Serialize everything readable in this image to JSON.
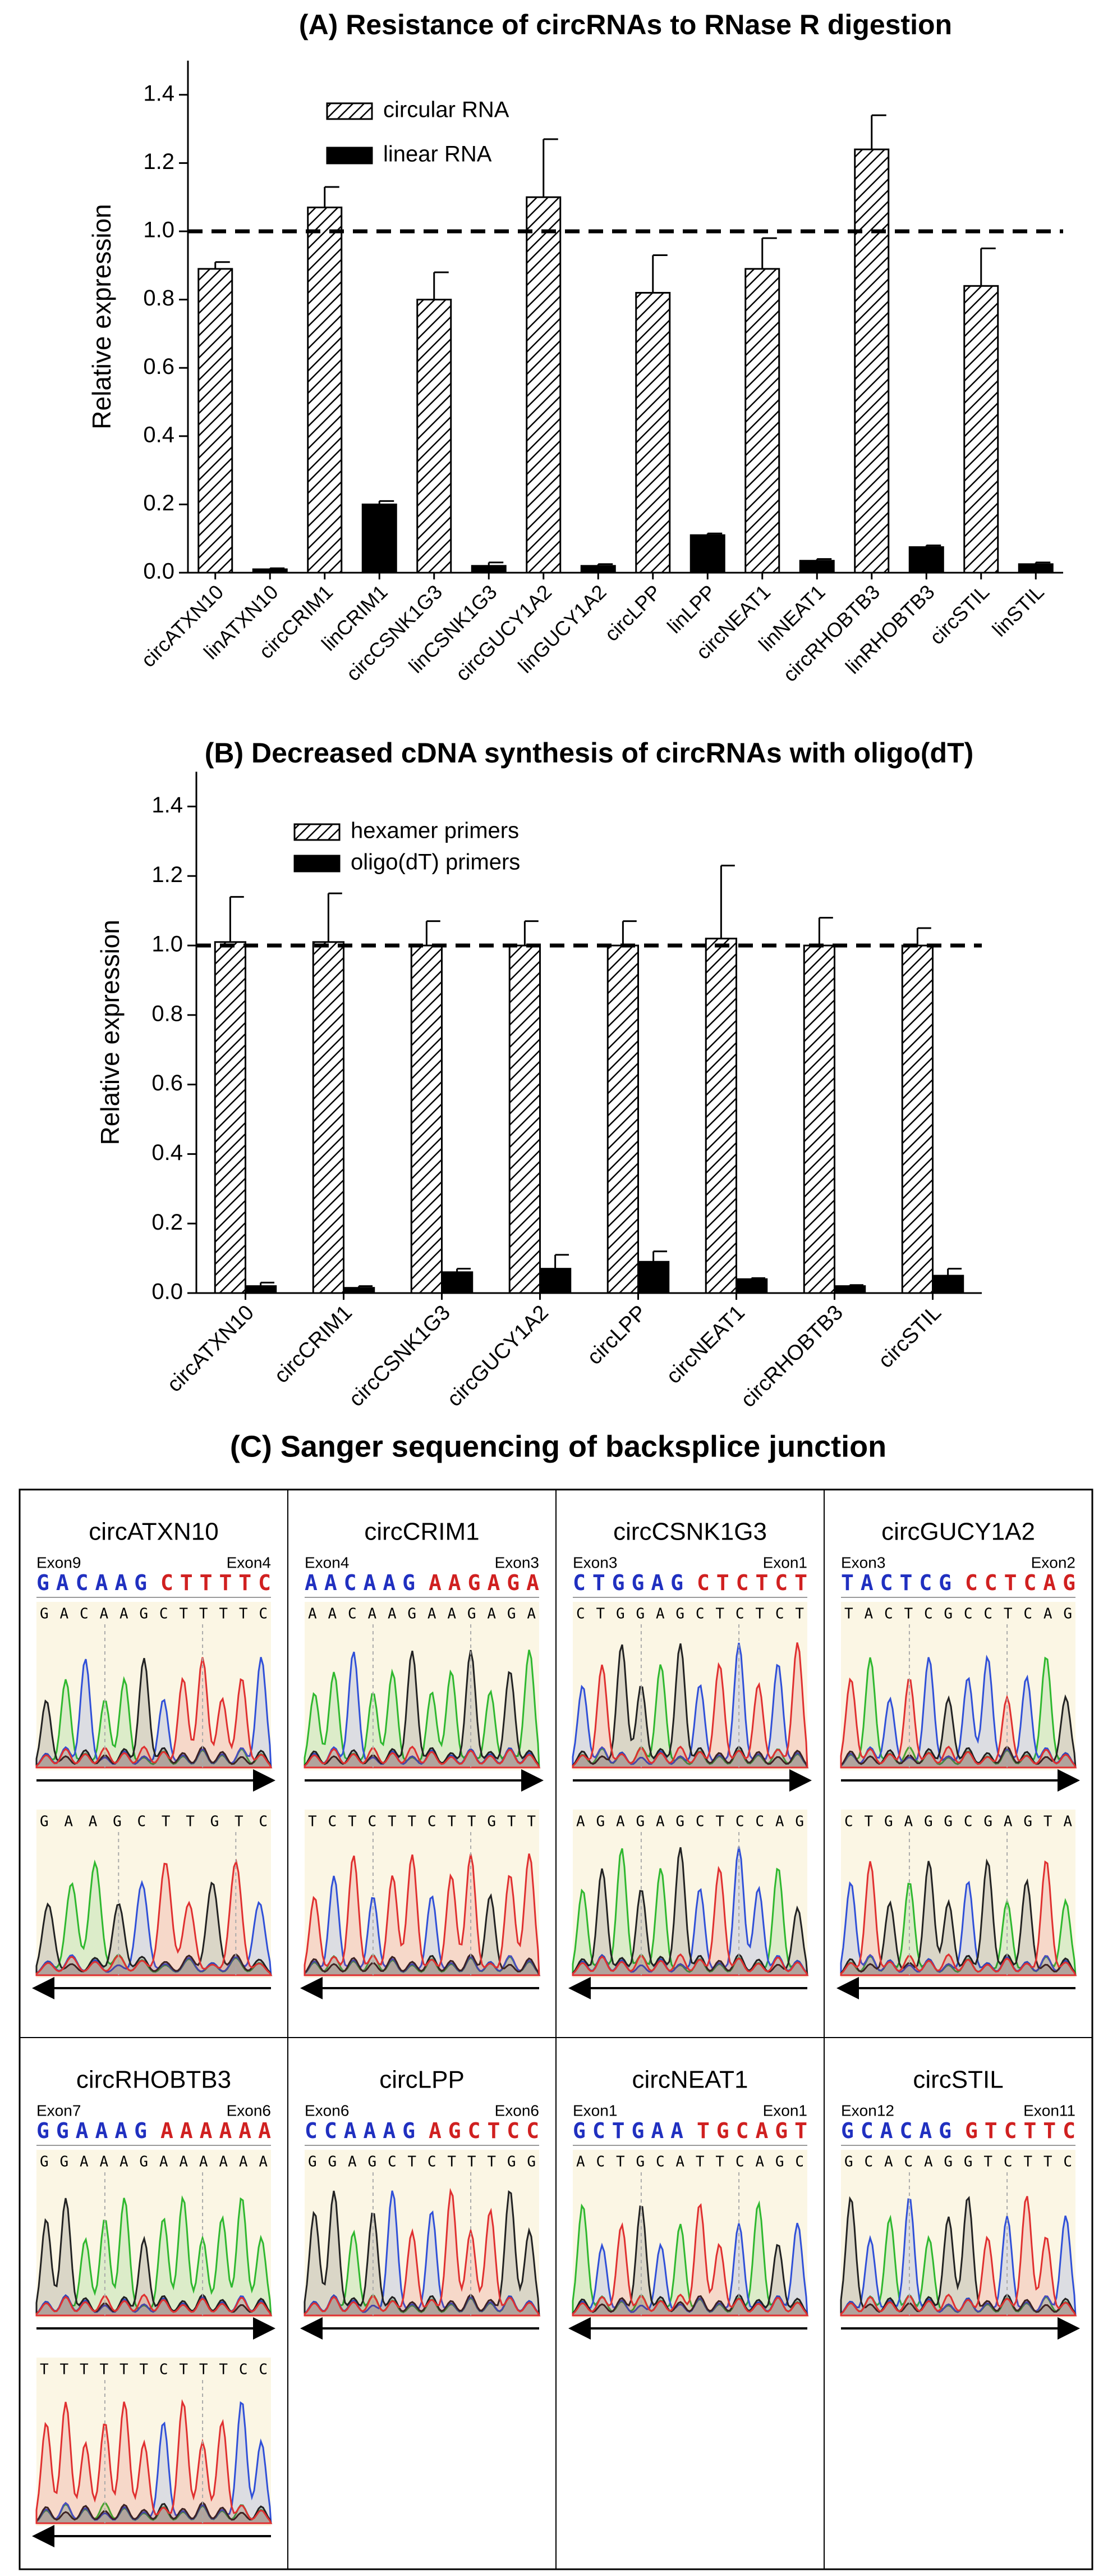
{
  "chart_data": [
    {
      "type": "bar",
      "title": "(A) Resistance of circRNAs to RNase R digestion",
      "ylabel": "Relative expression",
      "categories": [
        "circATXN10",
        "linATXN10",
        "circCRIM1",
        "linCRIM1",
        "circCSNK1G3",
        "linCSNK1G3",
        "circGUCY1A2",
        "linGUCY1A2",
        "circLPP",
        "linLPP",
        "circNEAT1",
        "linNEAT1",
        "circRHOBTB3",
        "linRHOBTB3",
        "circSTIL",
        "linSTIL"
      ],
      "series": [
        {
          "name": "circular RNA",
          "pattern": "hatch",
          "color": "#000000",
          "values": [
            0.89,
            null,
            1.07,
            null,
            0.8,
            null,
            1.1,
            null,
            0.82,
            null,
            0.89,
            null,
            1.24,
            null,
            0.84,
            null
          ],
          "errors": [
            0.02,
            null,
            0.06,
            null,
            0.08,
            null,
            0.17,
            null,
            0.11,
            null,
            0.09,
            null,
            0.1,
            null,
            0.11,
            null
          ]
        },
        {
          "name": "linear RNA",
          "pattern": "solid",
          "color": "#000000",
          "values": [
            null,
            0.01,
            null,
            0.2,
            null,
            0.02,
            null,
            0.02,
            null,
            0.11,
            null,
            0.035,
            null,
            0.075,
            null,
            0.025
          ],
          "errors": [
            null,
            0.003,
            null,
            0.01,
            null,
            0.01,
            null,
            0.005,
            null,
            0.005,
            null,
            0.005,
            null,
            0.005,
            null,
            0.005
          ]
        }
      ],
      "ylim": [
        0,
        1.5
      ],
      "yticks": [
        {
          "value": 0,
          "label": "0.0"
        },
        0.2,
        0.4,
        0.6,
        0.8,
        {
          "value": 1,
          "label": "1.0"
        },
        1.2,
        1.4
      ],
      "reference_line": 1,
      "legend": "upper left"
    },
    {
      "type": "bar",
      "title": "(B) Decreased cDNA synthesis of circRNAs with oligo(dT)",
      "ylabel": "Relative expression",
      "categories": [
        "circATXN10",
        "circCRIM1",
        "circCSNK1G3",
        "circGUCY1A2",
        "circLPP",
        "circNEAT1",
        "circRHOBTB3",
        "circSTIL"
      ],
      "series": [
        {
          "name": "hexamer primers",
          "pattern": "hatch",
          "color": "#000000",
          "values": [
            1.01,
            1.01,
            1.0,
            1.0,
            1.0,
            1.02,
            1.0,
            1.0
          ],
          "errors": [
            0.13,
            0.14,
            0.07,
            0.07,
            0.07,
            0.21,
            0.08,
            0.05
          ]
        },
        {
          "name": "oligo(dT) primers",
          "pattern": "solid",
          "color": "#000000",
          "values": [
            0.02,
            0.015,
            0.06,
            0.07,
            0.09,
            0.04,
            0.02,
            0.05
          ],
          "errors": [
            0.01,
            0.005,
            0.01,
            0.04,
            0.03,
            0.003,
            0.003,
            0.02
          ]
        }
      ],
      "ylim": [
        0,
        1.5
      ],
      "yticks": [
        {
          "value": 0,
          "label": "0.0"
        },
        0.2,
        0.4,
        0.6,
        0.8,
        {
          "value": 1,
          "label": "1.0"
        },
        1.2,
        1.4
      ],
      "reference_line": 1,
      "legend": "upper left"
    }
  ],
  "sanger": {
    "title": "(C) Sanger sequencing of backsplice junction",
    "cells": [
      {
        "name": "circATXN10",
        "exon_left": "Exon9",
        "exon_right": "Exon4",
        "left": "GACAAG",
        "right": "CTTTTC",
        "traces": [
          {
            "calls": "GACAAGCTTTTC",
            "direction": "right"
          },
          {
            "calls": "GAAGCTTGTC",
            "direction": "left"
          }
        ]
      },
      {
        "name": "circCRIM1",
        "exon_left": "Exon4",
        "exon_right": "Exon3",
        "left": "AACAAG",
        "right": "AAGAGA",
        "traces": [
          {
            "calls": "AACAAGAAGAGA",
            "direction": "right"
          },
          {
            "calls": "TCTCTTCTTGTT",
            "direction": "left"
          }
        ]
      },
      {
        "name": "circCSNK1G3",
        "exon_left": "Exon3",
        "exon_right": "Exon1",
        "left": "CTGGAG",
        "right": "CTCTCT",
        "traces": [
          {
            "calls": "CTGGAGCTCTCT",
            "direction": "right"
          },
          {
            "calls": "AGAGAGCTCCAG",
            "direction": "left"
          }
        ]
      },
      {
        "name": "circGUCY1A2",
        "exon_left": "Exon3",
        "exon_right": "Exon2",
        "left": "TACTCG",
        "right": "CCTCAG",
        "traces": [
          {
            "calls": "TACTCGCCTCAG",
            "direction": "right"
          },
          {
            "calls": "CTGAGGCGAGTA",
            "direction": "left"
          }
        ]
      },
      {
        "name": "circRHOBTB3",
        "exon_left": "Exon7",
        "exon_right": "Exon6",
        "left": "GGAAAG",
        "right": "AAAAAA",
        "traces": [
          {
            "calls": "GGAAAGAAAAAA",
            "direction": "right"
          },
          {
            "calls": "TTTTTTCTTTCC",
            "direction": "left"
          }
        ]
      },
      {
        "name": "circLPP",
        "exon_left": "Exon6",
        "exon_right": "Exon6",
        "left": "CCAAAG",
        "right": "AGCTCC",
        "traces": [
          {
            "calls": "GGAGCTCTTTGG",
            "direction": "left"
          }
        ]
      },
      {
        "name": "circNEAT1",
        "exon_left": "Exon1",
        "exon_right": "Exon1",
        "left": "GCTGAA",
        "right": "TGCAGT",
        "traces": [
          {
            "calls": "ACTGCATTCAGC",
            "direction": "left"
          }
        ]
      },
      {
        "name": "circSTIL",
        "exon_left": "Exon12",
        "exon_right": "Exon11",
        "left": "GCACAG",
        "right": "GTCTTC",
        "traces": [
          {
            "calls": "GCACAGGTCTTC",
            "direction": "right"
          }
        ]
      }
    ]
  }
}
